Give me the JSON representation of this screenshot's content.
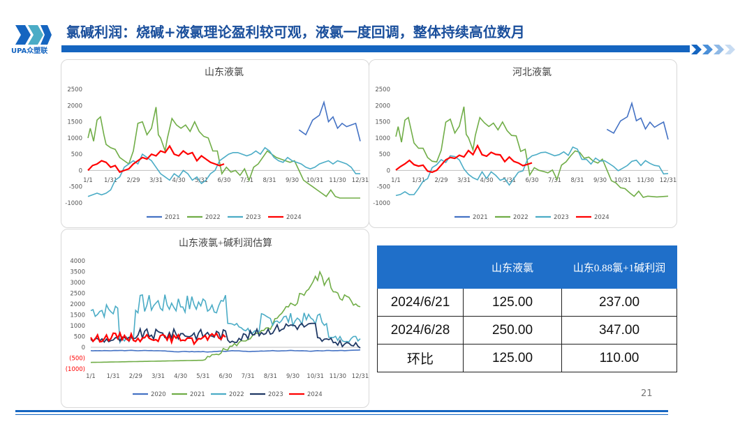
{
  "header": {
    "logo_text": "UPA众塑联",
    "title": "氯碱利润：烧碱+液氯理论盈利较可观，液氯一度回调，整体持续高位数月"
  },
  "colors": {
    "accent": "#1565c0",
    "s2020": "#4472c4",
    "s2021": "#70ad47",
    "s2022": "#4bacc6",
    "s2023": "#1f3864",
    "s2024": "#ff0000",
    "neg_label": "#ff0000"
  },
  "chart_data": [
    {
      "type": "line",
      "title": "山东液氯",
      "x_ticks": [
        "1/1",
        "1/31",
        "2/29",
        "3/31",
        "4/30",
        "5/31",
        "6/30",
        "7/31",
        "8/31",
        "9/30",
        "10/31",
        "11/30",
        "12/31"
      ],
      "y_ticks": [
        "2500",
        "2000",
        "1500",
        "1000",
        "500",
        "0",
        "-500",
        "-1000"
      ],
      "ylim": [
        -1000,
        2500
      ],
      "legend": "bottom",
      "series": [
        {
          "name": "2021",
          "color_key": "s2021_blue",
          "points": [
            [
              9.3,
              1250
            ],
            [
              9.6,
              1100
            ],
            [
              9.9,
              1550
            ],
            [
              10.2,
              1700
            ],
            [
              10.4,
              2100
            ],
            [
              10.6,
              1500
            ],
            [
              10.8,
              1650
            ],
            [
              11.0,
              1300
            ],
            [
              11.2,
              1450
            ],
            [
              11.4,
              1350
            ],
            [
              11.6,
              1400
            ],
            [
              11.8,
              1450
            ],
            [
              12.0,
              900
            ]
          ]
        },
        {
          "name": "2022",
          "points": [
            [
              0,
              1000
            ],
            [
              0.1,
              1300
            ],
            [
              0.25,
              900
            ],
            [
              0.4,
              1550
            ],
            [
              0.55,
              1650
            ],
            [
              0.7,
              1100
            ],
            [
              0.8,
              800
            ],
            [
              1.0,
              700
            ],
            [
              1.2,
              650
            ],
            [
              1.4,
              400
            ],
            [
              1.6,
              300
            ],
            [
              1.8,
              200
            ],
            [
              2.0,
              600
            ],
            [
              2.2,
              1450
            ],
            [
              2.4,
              1500
            ],
            [
              2.6,
              1100
            ],
            [
              2.8,
              1300
            ],
            [
              3.0,
              1950
            ],
            [
              3.1,
              1100
            ],
            [
              3.2,
              1000
            ],
            [
              3.4,
              600
            ],
            [
              3.5,
              1000
            ],
            [
              3.7,
              1600
            ],
            [
              3.9,
              1400
            ],
            [
              4.1,
              1300
            ],
            [
              4.3,
              1400
            ],
            [
              4.5,
              1200
            ],
            [
              4.7,
              1500
            ],
            [
              4.9,
              1200
            ],
            [
              5.1,
              1050
            ],
            [
              5.3,
              1000
            ],
            [
              5.5,
              600
            ],
            [
              5.7,
              600
            ],
            [
              5.9,
              -100
            ],
            [
              6.1,
              100
            ],
            [
              6.3,
              -50
            ],
            [
              6.5,
              0
            ],
            [
              6.7,
              -150
            ],
            [
              6.9,
              50
            ],
            [
              7.1,
              -300
            ],
            [
              7.3,
              100
            ],
            [
              7.5,
              200
            ],
            [
              7.7,
              400
            ],
            [
              7.9,
              600
            ],
            [
              8.1,
              500
            ],
            [
              8.3,
              400
            ],
            [
              8.5,
              350
            ],
            [
              8.7,
              300
            ],
            [
              8.9,
              250
            ],
            [
              9.1,
              300
            ],
            [
              9.3,
              0
            ],
            [
              9.5,
              -300
            ],
            [
              9.7,
              -400
            ],
            [
              9.9,
              -500
            ],
            [
              10.1,
              -600
            ],
            [
              10.3,
              -700
            ],
            [
              10.5,
              -800
            ],
            [
              10.7,
              -600
            ],
            [
              10.9,
              -800
            ],
            [
              11.1,
              -850
            ],
            [
              11.5,
              -850
            ],
            [
              12.0,
              -850
            ]
          ]
        },
        {
          "name": "2023",
          "points": [
            [
              0,
              -800
            ],
            [
              0.2,
              -750
            ],
            [
              0.4,
              -700
            ],
            [
              0.6,
              -750
            ],
            [
              0.8,
              -700
            ],
            [
              1.0,
              -600
            ],
            [
              1.2,
              -300
            ],
            [
              1.4,
              -200
            ],
            [
              1.6,
              100
            ],
            [
              1.8,
              200
            ],
            [
              2.0,
              300
            ],
            [
              2.2,
              200
            ],
            [
              2.4,
              500
            ],
            [
              2.6,
              400
            ],
            [
              2.8,
              300
            ],
            [
              3.0,
              100
            ],
            [
              3.2,
              -100
            ],
            [
              3.4,
              -200
            ],
            [
              3.6,
              -300
            ],
            [
              3.8,
              -100
            ],
            [
              4.0,
              -200
            ],
            [
              4.2,
              0
            ],
            [
              4.4,
              -100
            ],
            [
              4.6,
              -300
            ],
            [
              4.8,
              -200
            ],
            [
              5.0,
              -400
            ],
            [
              5.2,
              -300
            ],
            [
              5.4,
              -100
            ],
            [
              5.6,
              0
            ],
            [
              5.8,
              300
            ],
            [
              6.0,
              400
            ],
            [
              6.2,
              500
            ],
            [
              6.4,
              550
            ],
            [
              6.6,
              550
            ],
            [
              6.8,
              500
            ],
            [
              7.0,
              450
            ],
            [
              7.2,
              500
            ],
            [
              7.4,
              600
            ],
            [
              7.6,
              500
            ],
            [
              7.8,
              700
            ],
            [
              8.0,
              600
            ],
            [
              8.2,
              400
            ],
            [
              8.4,
              300
            ],
            [
              8.6,
              250
            ],
            [
              8.8,
              400
            ],
            [
              9.0,
              300
            ],
            [
              9.2,
              250
            ],
            [
              9.4,
              200
            ],
            [
              9.6,
              100
            ],
            [
              9.8,
              50
            ],
            [
              10.0,
              100
            ],
            [
              10.2,
              200
            ],
            [
              10.4,
              250
            ],
            [
              10.6,
              300
            ],
            [
              10.8,
              200
            ],
            [
              11.0,
              300
            ],
            [
              11.2,
              250
            ],
            [
              11.4,
              200
            ],
            [
              11.6,
              100
            ],
            [
              11.8,
              -100
            ],
            [
              12.0,
              -100
            ]
          ]
        },
        {
          "name": "2024",
          "points": [
            [
              0,
              0
            ],
            [
              0.2,
              150
            ],
            [
              0.4,
              200
            ],
            [
              0.6,
              300
            ],
            [
              0.8,
              250
            ],
            [
              1.0,
              100
            ],
            [
              1.2,
              150
            ],
            [
              1.4,
              -50
            ],
            [
              1.6,
              0
            ],
            [
              1.8,
              50
            ],
            [
              2.0,
              200
            ],
            [
              2.2,
              300
            ],
            [
              2.4,
              400
            ],
            [
              2.6,
              350
            ],
            [
              2.8,
              500
            ],
            [
              3.0,
              450
            ],
            [
              3.2,
              600
            ],
            [
              3.4,
              550
            ],
            [
              3.6,
              750
            ],
            [
              3.8,
              500
            ],
            [
              4.0,
              450
            ],
            [
              4.2,
              600
            ],
            [
              4.4,
              500
            ],
            [
              4.6,
              550
            ],
            [
              4.8,
              300
            ],
            [
              5.0,
              450
            ],
            [
              5.2,
              350
            ],
            [
              5.4,
              250
            ],
            [
              5.6,
              200
            ],
            [
              5.8,
              150
            ],
            [
              6.0,
              200
            ]
          ]
        }
      ]
    },
    {
      "type": "line",
      "title": "河北液氯",
      "x_ticks": [
        "1/1",
        "1/31",
        "2/29",
        "3/31",
        "4/30",
        "5/31",
        "6/30",
        "7/31",
        "8/31",
        "9/30",
        "10/31",
        "11/30",
        "12/31"
      ],
      "y_ticks": [
        "2500",
        "2000",
        "1500",
        "1000",
        "500",
        "0",
        "-500",
        "-1000"
      ],
      "ylim": [
        -1000,
        2500
      ],
      "legend": "bottom"
    },
    {
      "type": "line",
      "title": "山东液氯+碱利润估算",
      "x_ticks": [
        "1/1",
        "1/31",
        "2/29",
        "3/31",
        "4/30",
        "5/31",
        "6/30",
        "7/31",
        "8/31",
        "9/30",
        "10/31",
        "11/30",
        "12/31"
      ],
      "y_ticks": [
        "4000",
        "3500",
        "3000",
        "2500",
        "2000",
        "1500",
        "1000",
        "500",
        "0",
        "(500)",
        "(1000)"
      ],
      "ylim": [
        -1000,
        4000
      ],
      "legend": "bottom"
    }
  ],
  "legend1": [
    "2021",
    "2022",
    "2023",
    "2024"
  ],
  "legend3": [
    "2020",
    "2021",
    "2022",
    "2023",
    "2024"
  ],
  "table": {
    "headers": [
      "",
      "山东液氯",
      "山东0.88氯+1碱利润"
    ],
    "rows": [
      [
        "2024/6/21",
        "125.00",
        "237.00"
      ],
      [
        "2024/6/28",
        "250.00",
        "347.00"
      ],
      [
        "环比",
        "125.00",
        "110.00"
      ]
    ]
  },
  "page_number": "21"
}
